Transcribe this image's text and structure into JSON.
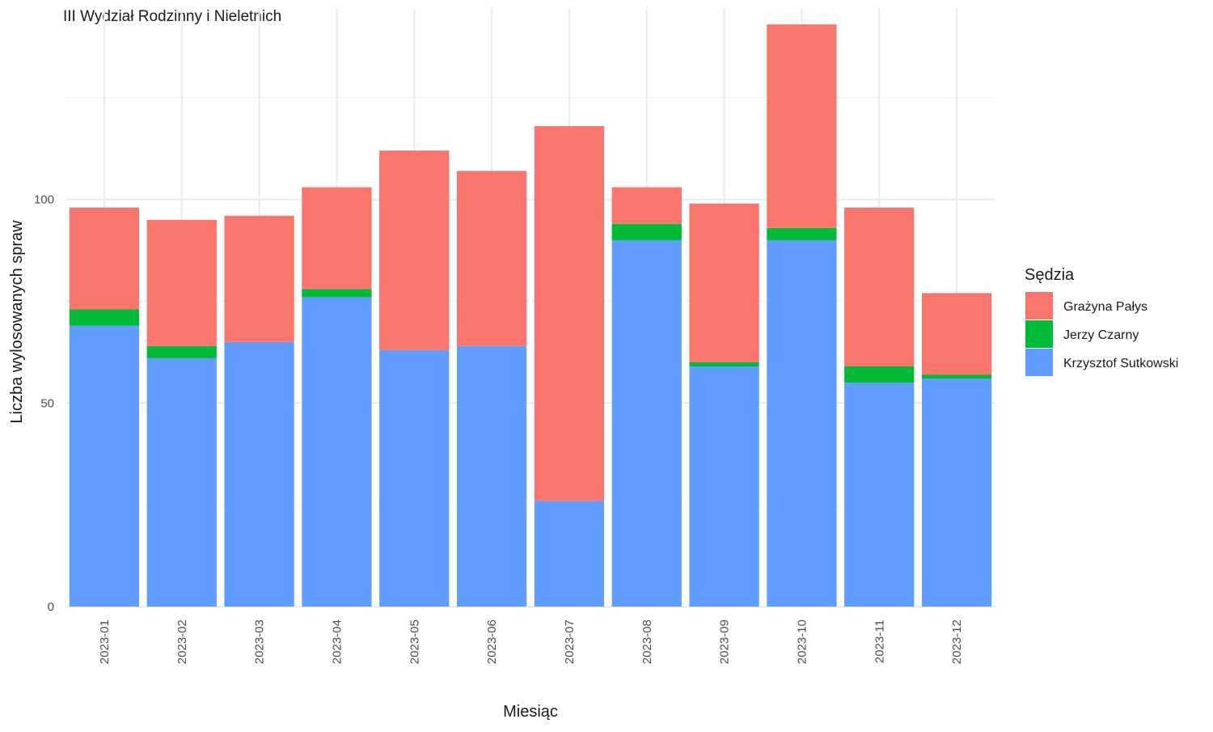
{
  "chart_data": {
    "type": "bar",
    "stacked": true,
    "title": "III Wydział Rodzinny i Nieletnich",
    "xlabel": "Miesiąc",
    "ylabel": "Liczba wylosowanych spraw",
    "ylim": [
      0,
      147
    ],
    "yticks": [
      0,
      50,
      100
    ],
    "grid": true,
    "legend": {
      "title": "Sędzia",
      "position": "right"
    },
    "categories": [
      "2023-01",
      "2023-02",
      "2023-03",
      "2023-04",
      "2023-05",
      "2023-06",
      "2023-07",
      "2023-08",
      "2023-09",
      "2023-10",
      "2023-11",
      "2023-12"
    ],
    "series": [
      {
        "name": "Krzysztof Sutkowski",
        "color": "#619CFF",
        "values": [
          69,
          61,
          65,
          76,
          63,
          64,
          26,
          90,
          59,
          90,
          55,
          56
        ]
      },
      {
        "name": "Jerzy Czarny",
        "color": "#00BA38",
        "values": [
          4,
          3,
          0,
          2,
          0,
          0,
          0,
          4,
          1,
          3,
          4,
          1
        ]
      },
      {
        "name": "Grażyna Pałys",
        "color": "#F8766D",
        "values": [
          25,
          31,
          31,
          25,
          49,
          43,
          92,
          9,
          39,
          50,
          39,
          20
        ]
      }
    ],
    "legend_order": [
      "Grażyna Pałys",
      "Jerzy Czarny",
      "Krzysztof Sutkowski"
    ]
  }
}
